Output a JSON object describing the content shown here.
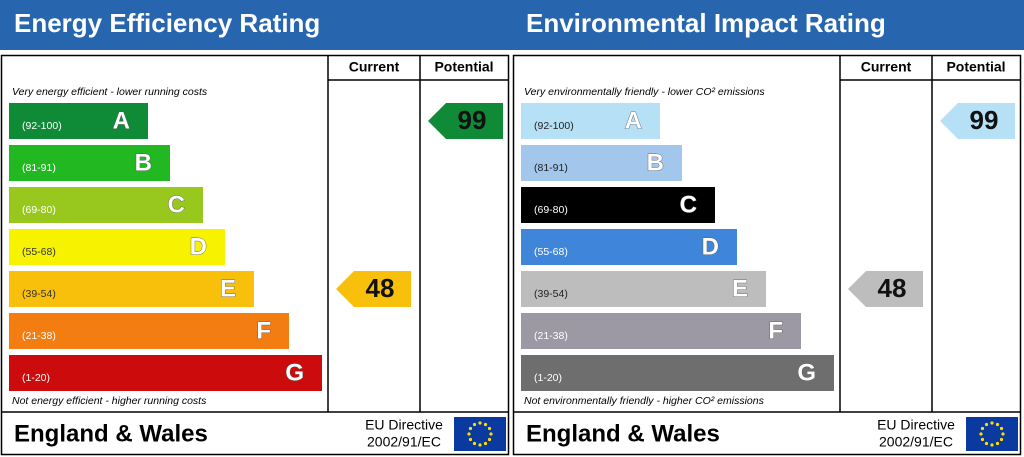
{
  "chart_data": [
    {
      "type": "epc",
      "title": "Energy Efficiency Rating",
      "columns": [
        "Current",
        "Potential"
      ],
      "top_note": "Very energy efficient - lower running costs",
      "bottom_note": "Not energy efficient - higher running costs",
      "bands": [
        {
          "range": "(92-100)",
          "letter": "A",
          "color": "#0f8a37",
          "text_color": "#ffffff"
        },
        {
          "range": "(81-91)",
          "letter": "B",
          "color": "#22b822",
          "text_color": "#ffffff"
        },
        {
          "range": "(69-80)",
          "letter": "C",
          "color": "#98c81e",
          "text_color": "#ffffff"
        },
        {
          "range": "(55-68)",
          "letter": "D",
          "color": "#f6f200",
          "text_color": "#333333"
        },
        {
          "range": "(39-54)",
          "letter": "E",
          "color": "#f8c00a",
          "text_color": "#333333"
        },
        {
          "range": "(21-38)",
          "letter": "F",
          "color": "#f47d12",
          "text_color": "#ffffff"
        },
        {
          "range": "(1-20)",
          "letter": "G",
          "color": "#cc0c0c",
          "text_color": "#ffffff"
        }
      ],
      "current": 48,
      "potential": 99,
      "footer": "England & Wales",
      "directive": [
        "EU Directive",
        "2002/91/EC"
      ]
    },
    {
      "type": "epc",
      "title": "Environmental Impact Rating",
      "columns": [
        "Current",
        "Potential"
      ],
      "top_note": "Very environmentally friendly - lower CO² emissions",
      "bottom_note": "Not environmentally friendly - higher CO² emissions",
      "bands": [
        {
          "range": "(92-100)",
          "letter": "A",
          "color": "#b6e0f6",
          "text_color": "#222222"
        },
        {
          "range": "(81-91)",
          "letter": "B",
          "color": "#a2c6ec",
          "text_color": "#222222"
        },
        {
          "range": "(69-80)",
          "letter": "C",
          "color": "#7badе2",
          "text_color": "#ffffff"
        },
        {
          "range": "(55-68)",
          "letter": "D",
          "color": "#3f85da",
          "text_color": "#ffffff"
        },
        {
          "range": "(39-54)",
          "letter": "E",
          "color": "#bdbdbd",
          "text_color": "#222222"
        },
        {
          "range": "(21-38)",
          "letter": "F",
          "color": "#9c98a4",
          "text_color": "#ffffff"
        },
        {
          "range": "(1-20)",
          "letter": "G",
          "color": "#6e6e6e",
          "text_color": "#ffffff"
        }
      ],
      "current": 48,
      "potential": 99,
      "footer": "England & Wales",
      "directive": [
        "EU Directive",
        "2002/91/EC"
      ]
    }
  ]
}
